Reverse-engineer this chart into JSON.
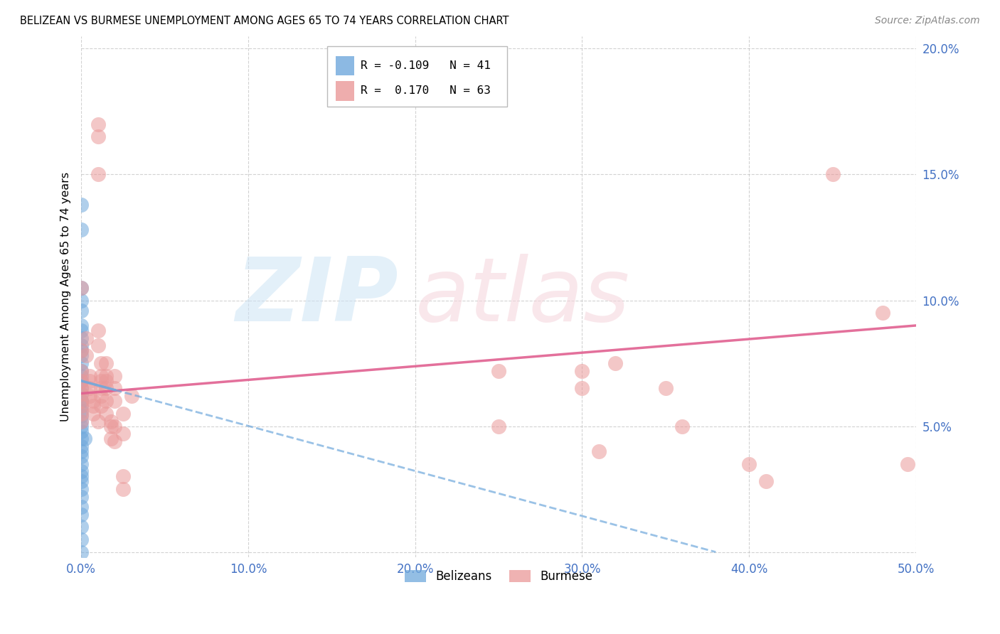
{
  "title": "BELIZEAN VS BURMESE UNEMPLOYMENT AMONG AGES 65 TO 74 YEARS CORRELATION CHART",
  "source": "Source: ZipAtlas.com",
  "ylabel": "Unemployment Among Ages 65 to 74 years",
  "xlim": [
    0,
    0.5
  ],
  "ylim": [
    -0.002,
    0.205
  ],
  "xticks": [
    0.0,
    0.1,
    0.2,
    0.3,
    0.4,
    0.5
  ],
  "yticks": [
    0.0,
    0.05,
    0.1,
    0.15,
    0.2
  ],
  "xticklabels": [
    "0.0%",
    "10.0%",
    "20.0%",
    "30.0%",
    "40.0%",
    "50.0%"
  ],
  "yticklabels": [
    "",
    "5.0%",
    "10.0%",
    "15.0%",
    "20.0%"
  ],
  "belizean_color": "#6fa8dc",
  "burmese_color": "#ea9999",
  "trend_blue": "#6fa8dc",
  "trend_pink": "#e06090",
  "belizean_R": -0.109,
  "belizean_N": 41,
  "burmese_R": 0.17,
  "burmese_N": 63,
  "legend_label_1": "Belizeans",
  "legend_label_2": "Burmese",
  "belizean_x": [
    0.0,
    0.0,
    0.0,
    0.0,
    0.0,
    0.0,
    0.0,
    0.0,
    0.0,
    0.0,
    0.0,
    0.0,
    0.0,
    0.0,
    0.0,
    0.0,
    0.0,
    0.0,
    0.0,
    0.0,
    0.0,
    0.0,
    0.0,
    0.0,
    0.0,
    0.0,
    0.0,
    0.0,
    0.0,
    0.0,
    0.0,
    0.0,
    0.0,
    0.0,
    0.0,
    0.0,
    0.0,
    0.0,
    0.0,
    0.0,
    0.002
  ],
  "belizean_y": [
    0.138,
    0.128,
    0.105,
    0.1,
    0.096,
    0.09,
    0.088,
    0.085,
    0.082,
    0.08,
    0.078,
    0.075,
    0.072,
    0.07,
    0.068,
    0.065,
    0.063,
    0.06,
    0.058,
    0.056,
    0.054,
    0.052,
    0.05,
    0.048,
    0.045,
    0.042,
    0.04,
    0.038,
    0.035,
    0.032,
    0.03,
    0.028,
    0.025,
    0.022,
    0.018,
    0.015,
    0.01,
    0.005,
    0.0,
    0.06,
    0.045
  ],
  "burmese_x": [
    0.0,
    0.0,
    0.0,
    0.0,
    0.0,
    0.0,
    0.0,
    0.0,
    0.0,
    0.0,
    0.003,
    0.003,
    0.005,
    0.005,
    0.005,
    0.005,
    0.007,
    0.007,
    0.007,
    0.01,
    0.01,
    0.01,
    0.01,
    0.01,
    0.01,
    0.012,
    0.012,
    0.012,
    0.012,
    0.012,
    0.012,
    0.015,
    0.015,
    0.015,
    0.015,
    0.015,
    0.015,
    0.018,
    0.018,
    0.018,
    0.02,
    0.02,
    0.02,
    0.02,
    0.02,
    0.025,
    0.025,
    0.025,
    0.025,
    0.03,
    0.25,
    0.25,
    0.3,
    0.3,
    0.31,
    0.32,
    0.35,
    0.36,
    0.4,
    0.41,
    0.45,
    0.48,
    0.495
  ],
  "burmese_y": [
    0.105,
    0.08,
    0.072,
    0.068,
    0.065,
    0.063,
    0.06,
    0.058,
    0.055,
    0.052,
    0.085,
    0.078,
    0.07,
    0.068,
    0.065,
    0.062,
    0.06,
    0.058,
    0.055,
    0.052,
    0.165,
    0.17,
    0.15,
    0.088,
    0.082,
    0.075,
    0.07,
    0.068,
    0.065,
    0.062,
    0.058,
    0.075,
    0.07,
    0.068,
    0.065,
    0.06,
    0.055,
    0.052,
    0.05,
    0.045,
    0.07,
    0.065,
    0.06,
    0.05,
    0.044,
    0.03,
    0.025,
    0.047,
    0.055,
    0.062,
    0.072,
    0.05,
    0.072,
    0.065,
    0.04,
    0.075,
    0.065,
    0.05,
    0.035,
    0.028,
    0.15,
    0.095,
    0.035
  ],
  "bel_trend_x0": 0.0,
  "bel_trend_y0": 0.068,
  "bel_trend_x1": 0.38,
  "bel_trend_y1": 0.0,
  "bur_trend_x0": 0.0,
  "bur_trend_y0": 0.063,
  "bur_trend_x1": 0.5,
  "bur_trend_y1": 0.09
}
